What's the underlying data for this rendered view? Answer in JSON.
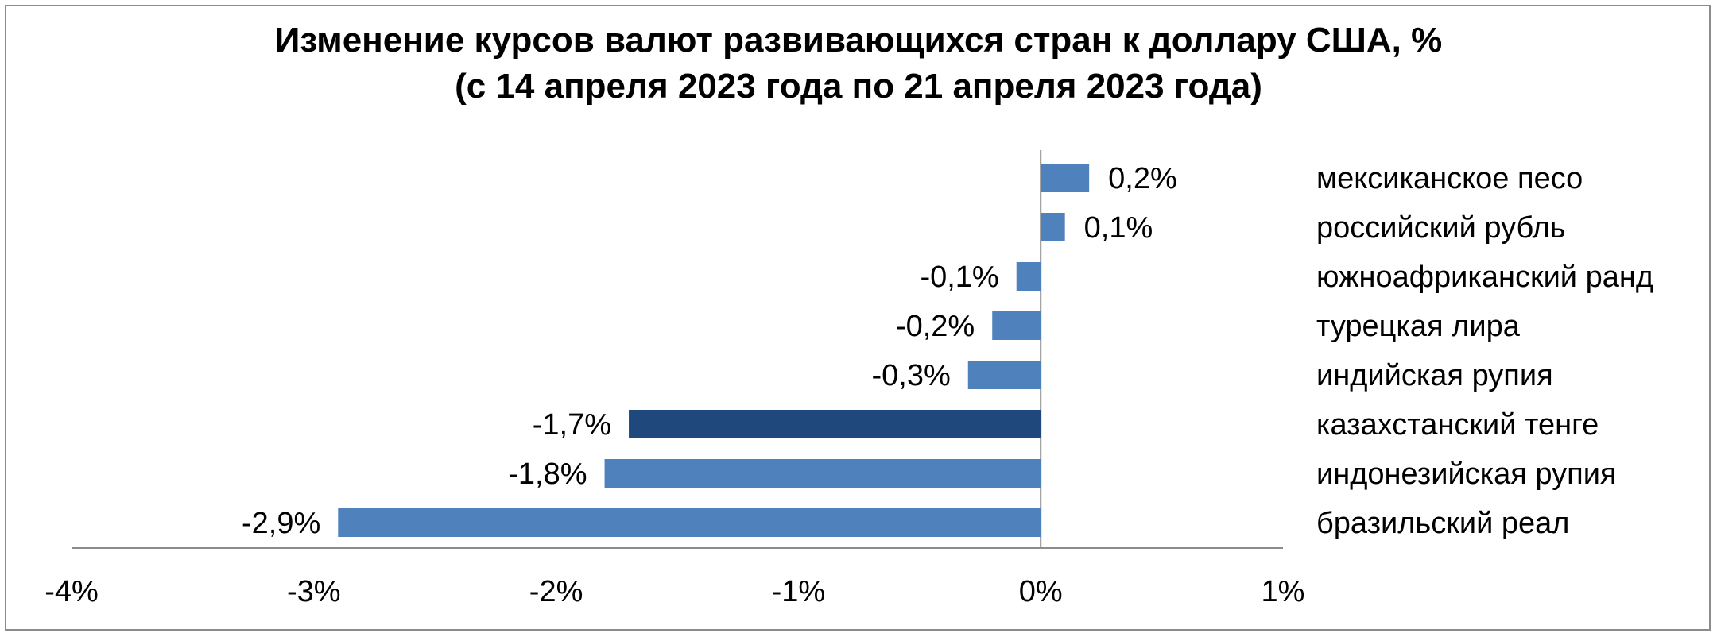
{
  "chart_data": {
    "type": "bar",
    "orientation": "horizontal",
    "title": "Изменение курсов валют развивающихся стран к доллару США, %",
    "subtitle": "(с 14 апреля 2023 года по 21 апреля 2023 года)",
    "categories": [
      "мексиканское песо",
      "российский рубль",
      "южноафриканский ранд",
      "турецкая лира",
      "индийская рупия",
      "казахстанский тенге",
      "индонезийская рупия",
      "бразильский реал"
    ],
    "values": [
      0.2,
      0.1,
      -0.1,
      -0.2,
      -0.3,
      -1.7,
      -1.8,
      -2.9
    ],
    "value_labels": [
      "0,2%",
      "0,1%",
      "-0,1%",
      "-0,2%",
      "-0,3%",
      "-1,7%",
      "-1,8%",
      "-2,9%"
    ],
    "highlight_category": "казахстанский тенге",
    "xlim": [
      -4,
      1
    ],
    "x_ticks": [
      -4,
      -3,
      -2,
      -1,
      0,
      1
    ],
    "x_tick_labels": [
      "-4%",
      "-3%",
      "-2%",
      "-1%",
      "0%",
      "1%"
    ],
    "grid": false,
    "legend": "none",
    "colors": {
      "bar": "#4f81bd",
      "highlight": "#1f497d",
      "axis": "#8c8c8c"
    }
  }
}
